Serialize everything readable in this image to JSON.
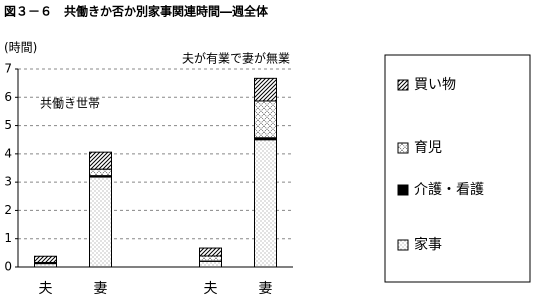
{
  "chart_data": {
    "type": "stacked-bar",
    "title": "図３－６　共働きか否か別家事関連時間―週全体",
    "y_label": "(時間)",
    "annotations": [
      "共働き世帯",
      "夫が有業で妻が無業"
    ],
    "categories": [
      "夫",
      "妻",
      null,
      "夫",
      "妻"
    ],
    "series": [
      {
        "name": "家事",
        "color": "#ffffff",
        "pattern": "dots",
        "values": [
          0.12,
          3.18,
          null,
          0.2,
          4.5
        ]
      },
      {
        "name": "介護・看護",
        "color": "#000000",
        "pattern": "solid",
        "values": [
          0.01,
          0.05,
          null,
          0.01,
          0.07
        ]
      },
      {
        "name": "育児",
        "color": "#ffffff",
        "pattern": "crossdots",
        "values": [
          0.03,
          0.23,
          null,
          0.18,
          1.3
        ]
      },
      {
        "name": "買い物",
        "color": "#ffffff",
        "pattern": "diagonal",
        "values": [
          0.22,
          0.6,
          null,
          0.28,
          0.8
        ]
      }
    ],
    "ylim": [
      0,
      7
    ],
    "yticks": [
      0,
      1,
      2,
      3,
      4,
      5,
      6,
      7
    ],
    "grid": true
  }
}
